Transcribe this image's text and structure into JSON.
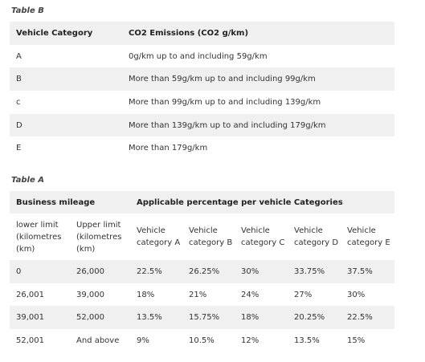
{
  "tableB": {
    "caption": "Table B",
    "headers": [
      "Vehicle Category",
      "CO2 Emissions (CO2 g/km)"
    ],
    "rows": [
      [
        "A",
        "0g/km up to and including 59g/km"
      ],
      [
        "B",
        "More than 59g/km up to and including 99g/km"
      ],
      [
        "c",
        "More than 99g/km up to and including 139g/km"
      ],
      [
        "D",
        "More than 139g/km up to and including 179g/km"
      ],
      [
        "E",
        "More than 179g/km"
      ]
    ]
  },
  "tableA": {
    "caption": "Table A",
    "group_headers": [
      "Business mileage",
      "Applicable percentage per vehicle Categories"
    ],
    "sub_headers": [
      "lower limit (kilometres (km)",
      "Upper limit (kilometres (km)",
      "Vehicle category A",
      "Vehicle category B",
      "Vehicle category C",
      "Vehicle category D",
      "Vehicle category E"
    ],
    "rows": [
      [
        "0",
        "26,000",
        "22.5%",
        "26.25%",
        "30%",
        "33.75%",
        "37.5%"
      ],
      [
        "26,001",
        "39,000",
        "18%",
        "21%",
        "24%",
        "27%",
        "30%"
      ],
      [
        "39,001",
        "52,000",
        "13.5%",
        "15.75%",
        "18%",
        "20.25%",
        "22.5%"
      ],
      [
        "52,001",
        "And above",
        "9%",
        "10.5%",
        "12%",
        "13.5%",
        "15%"
      ]
    ]
  }
}
